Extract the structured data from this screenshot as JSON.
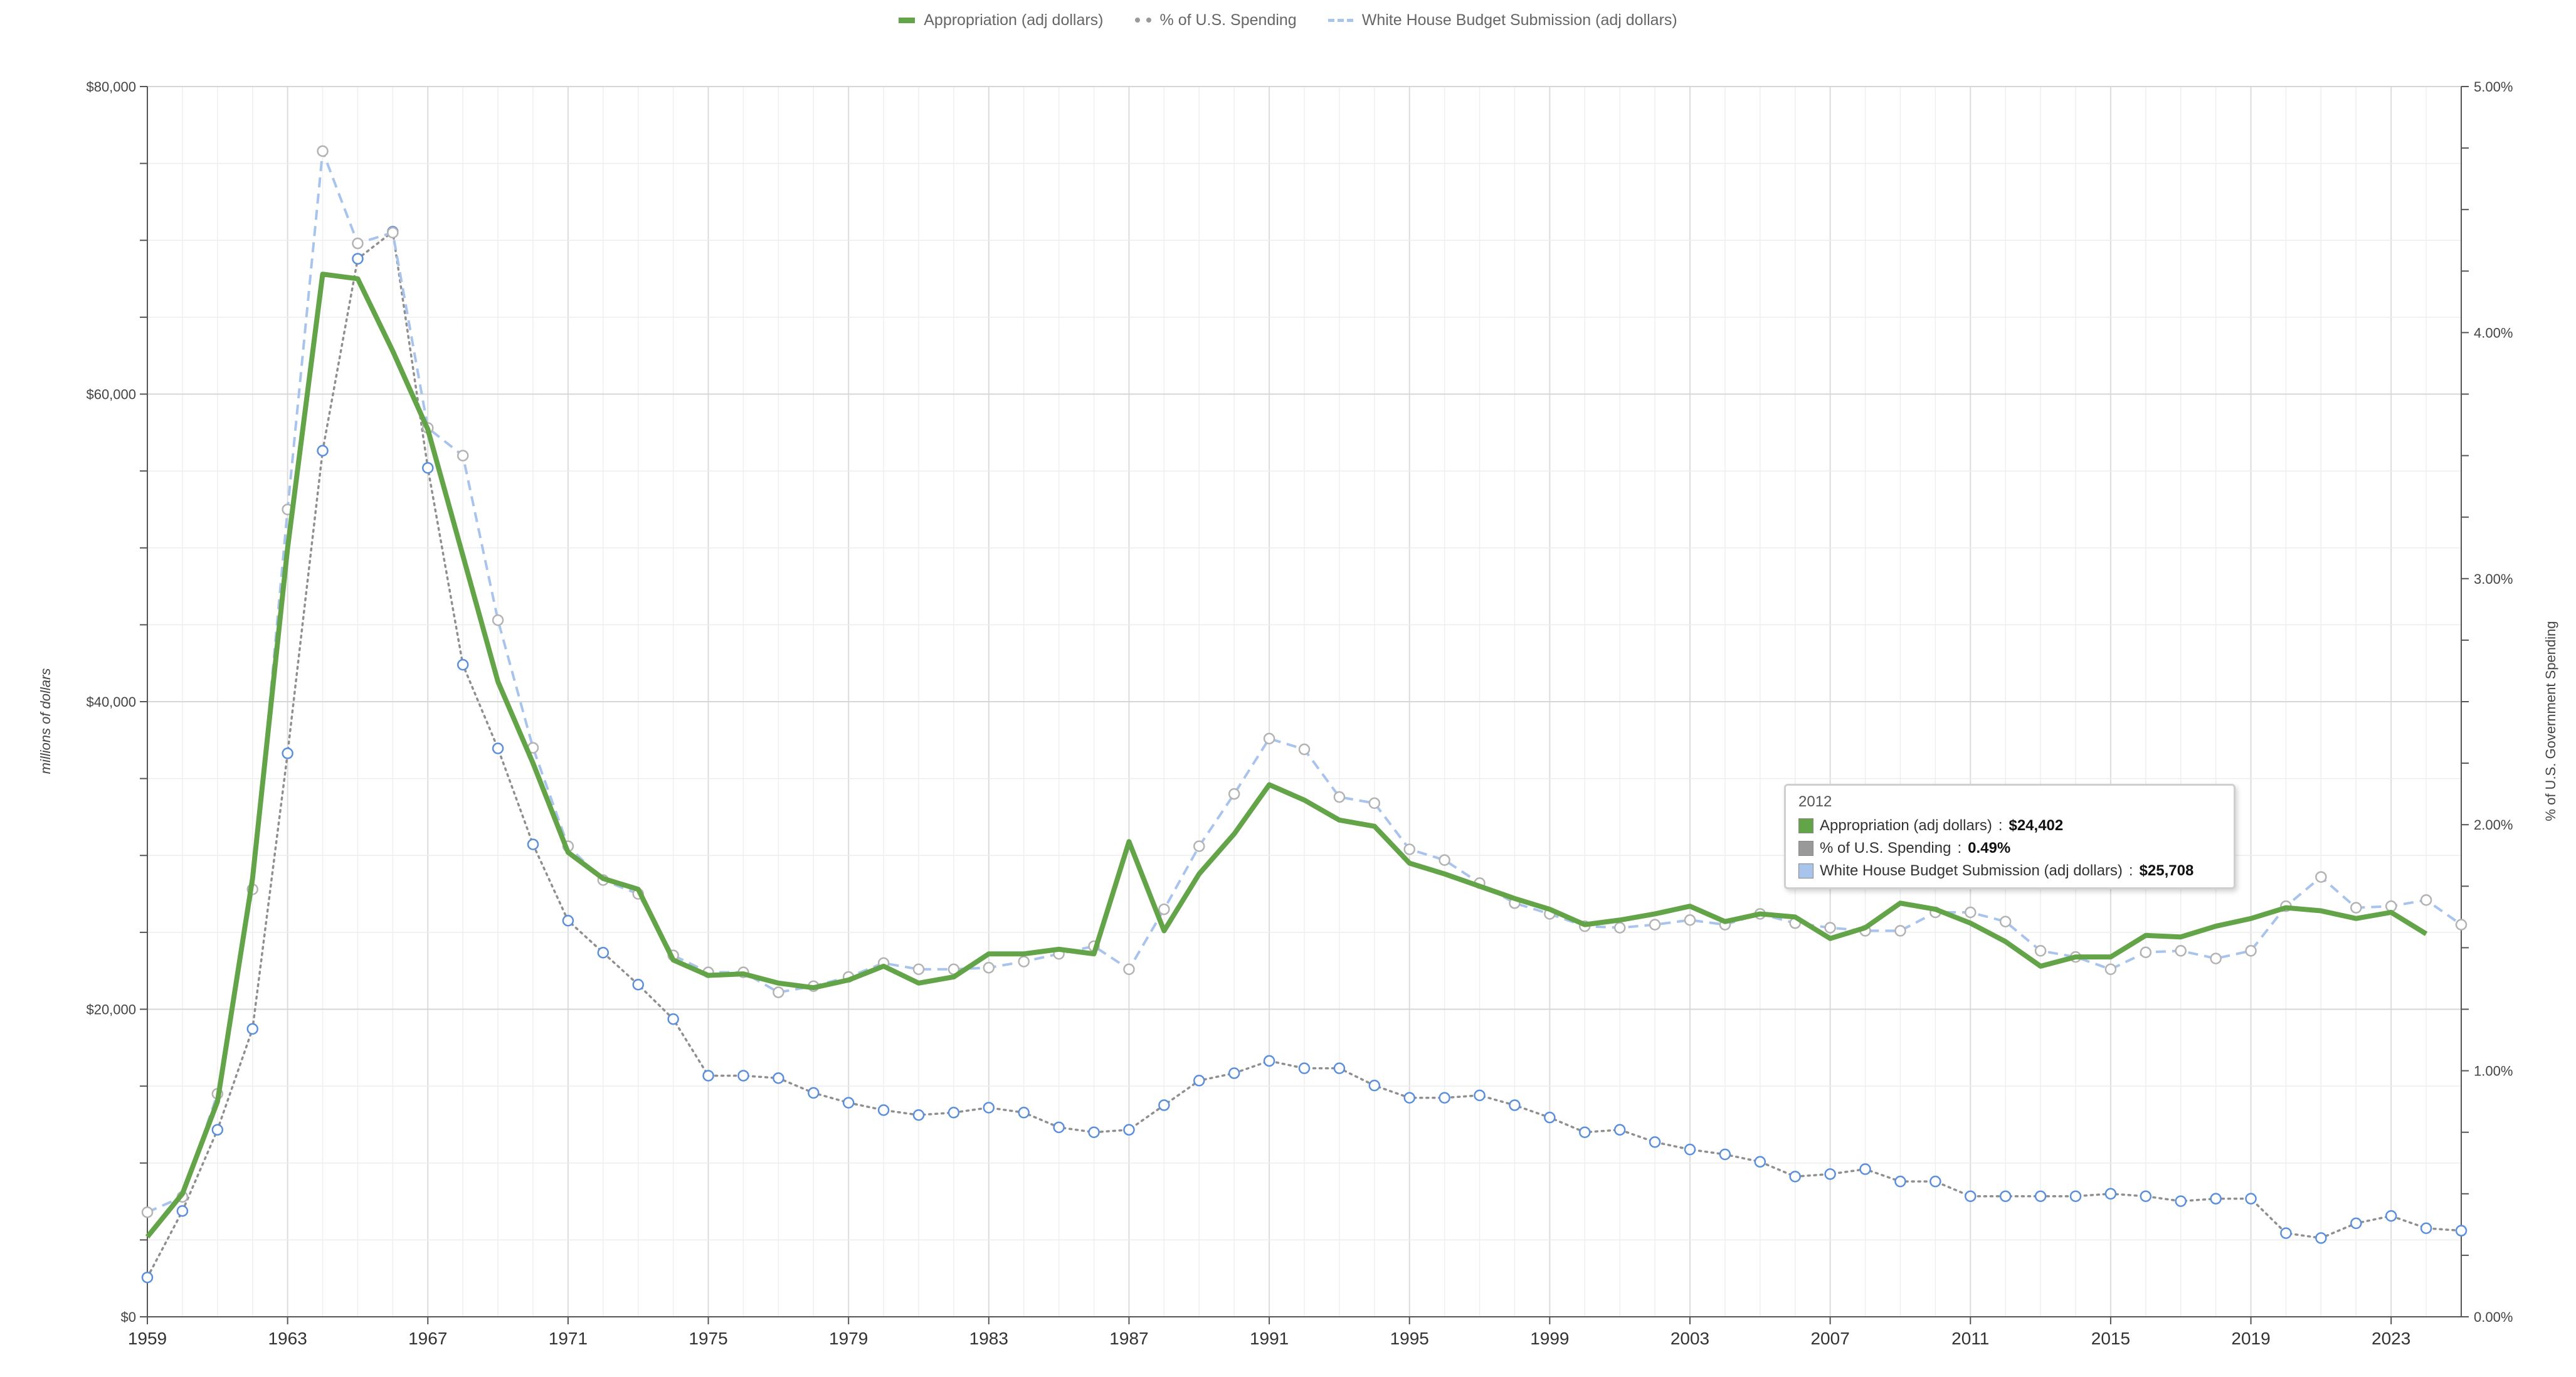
{
  "legend": [
    {
      "label": "Appropriation (adj dollars)",
      "style": "solid",
      "color": "#62a447"
    },
    {
      "label": "% of U.S. Spending",
      "style": "dotted",
      "color": "#999999"
    },
    {
      "label": "White House Budget Submission (adj dollars)",
      "style": "dashed",
      "color": "#a9c4ec"
    }
  ],
  "tooltip": {
    "year": "2012",
    "rows": [
      {
        "label": "Appropriation (adj dollars)",
        "value": "$24,402",
        "color": "#62a447"
      },
      {
        "label": "% of U.S. Spending",
        "value": "0.49%",
        "color": "#999999"
      },
      {
        "label": "White House Budget Submission (adj dollars)",
        "value": "$25,708",
        "color": "#a9c4ec"
      }
    ]
  },
  "chart_data": {
    "type": "line",
    "title": "",
    "ylabel": "millions of dollars",
    "y2label": "% of U.S. Government Spending",
    "xlim": [
      1959,
      2025
    ],
    "ylim": [
      0,
      80000
    ],
    "y2lim": [
      0,
      5
    ],
    "grid": true,
    "legend_position": "top-center",
    "x_ticks": [
      "1959",
      "1963",
      "1967",
      "1971",
      "1975",
      "1979",
      "1983",
      "1987",
      "1991",
      "1995",
      "1999",
      "2003",
      "2007",
      "2011",
      "2015",
      "2019",
      "2023"
    ],
    "y_ticks": [
      "$0",
      "$20,000",
      "$40,000",
      "$60,000",
      "$80,000"
    ],
    "y2_ticks": [
      "0.00%",
      "1.00%",
      "2.00%",
      "3.00%",
      "4.00%",
      "5.00%"
    ],
    "series": [
      {
        "name": "Appropriation (adj dollars)",
        "axis": "left",
        "color": "#62a447",
        "x": [
          1959,
          1960,
          1961,
          1962,
          1963,
          1964,
          1965,
          1966,
          1967,
          1968,
          1969,
          1970,
          1971,
          1972,
          1973,
          1974,
          1975,
          1976,
          1977,
          1978,
          1979,
          1980,
          1981,
          1982,
          1983,
          1984,
          1985,
          1986,
          1987,
          1988,
          1989,
          1990,
          1991,
          1992,
          1993,
          1994,
          1995,
          1996,
          1997,
          1998,
          1999,
          2000,
          2001,
          2002,
          2003,
          2004,
          2005,
          2006,
          2007,
          2008,
          2009,
          2010,
          2011,
          2012,
          2013,
          2014,
          2015,
          2016,
          2017,
          2018,
          2019,
          2020,
          2021,
          2022,
          2023,
          2024
        ],
        "values": [
          5200,
          8000,
          14000,
          28500,
          50000,
          67800,
          67500,
          62800,
          57700,
          49500,
          41300,
          36000,
          30200,
          28500,
          27800,
          23200,
          22200,
          22300,
          21700,
          21400,
          21900,
          22800,
          21700,
          22100,
          23600,
          23600,
          23900,
          23600,
          30900,
          25100,
          28800,
          31400,
          34600,
          33600,
          32300,
          31900,
          29500,
          28800,
          28000,
          27200,
          26500,
          25500,
          25800,
          26200,
          26700,
          25700,
          26200,
          26000,
          24600,
          25300,
          26900,
          26500,
          25600,
          24400,
          22800,
          23400,
          23400,
          24800,
          24700,
          25400,
          25900,
          26600,
          26400,
          25900,
          26300,
          24900
        ]
      },
      {
        "name": "% of U.S. Spending",
        "axis": "right",
        "color": "#999999",
        "x": [
          1959,
          1960,
          1961,
          1962,
          1963,
          1964,
          1965,
          1966,
          1967,
          1968,
          1969,
          1970,
          1971,
          1972,
          1973,
          1974,
          1975,
          1976,
          1977,
          1978,
          1979,
          1980,
          1981,
          1982,
          1983,
          1984,
          1985,
          1986,
          1987,
          1988,
          1989,
          1990,
          1991,
          1992,
          1993,
          1994,
          1995,
          1996,
          1997,
          1998,
          1999,
          2000,
          2001,
          2002,
          2003,
          2004,
          2005,
          2006,
          2007,
          2008,
          2009,
          2010,
          2011,
          2012,
          2013,
          2014,
          2015,
          2016,
          2017,
          2018,
          2019,
          2020,
          2021,
          2022,
          2023,
          2024,
          2025
        ],
        "values": [
          0.16,
          0.43,
          0.76,
          1.17,
          2.29,
          3.52,
          4.3,
          4.41,
          3.45,
          2.65,
          2.31,
          1.92,
          1.61,
          1.48,
          1.35,
          1.21,
          0.98,
          0.98,
          0.97,
          0.91,
          0.87,
          0.84,
          0.82,
          0.83,
          0.85,
          0.83,
          0.77,
          0.75,
          0.76,
          0.86,
          0.96,
          0.99,
          1.04,
          1.01,
          1.01,
          0.94,
          0.89,
          0.89,
          0.9,
          0.86,
          0.81,
          0.75,
          0.76,
          0.71,
          0.68,
          0.66,
          0.63,
          0.57,
          0.58,
          0.6,
          0.55,
          0.55,
          0.49,
          0.49,
          0.49,
          0.49,
          0.5,
          0.49,
          0.47,
          0.48,
          0.48,
          0.34,
          0.32,
          0.38,
          0.41,
          0.36,
          0.35
        ]
      },
      {
        "name": "White House Budget Submission (adj dollars)",
        "axis": "left",
        "color": "#a9c4ec",
        "x": [
          1959,
          1960,
          1961,
          1962,
          1963,
          1964,
          1965,
          1966,
          1967,
          1968,
          1969,
          1970,
          1971,
          1972,
          1973,
          1974,
          1975,
          1976,
          1977,
          1978,
          1979,
          1980,
          1981,
          1982,
          1983,
          1984,
          1985,
          1986,
          1987,
          1988,
          1989,
          1990,
          1991,
          1992,
          1993,
          1994,
          1995,
          1996,
          1997,
          1998,
          1999,
          2000,
          2001,
          2002,
          2003,
          2004,
          2005,
          2006,
          2007,
          2008,
          2009,
          2010,
          2011,
          2012,
          2013,
          2014,
          2015,
          2016,
          2017,
          2018,
          2019,
          2020,
          2021,
          2022,
          2023,
          2024,
          2025
        ],
        "values": [
          6800,
          7800,
          14500,
          27800,
          52500,
          75800,
          69800,
          70500,
          57800,
          56000,
          45300,
          37000,
          30600,
          28400,
          27500,
          23500,
          22400,
          22400,
          21100,
          21500,
          22100,
          23000,
          22600,
          22600,
          22700,
          23100,
          23600,
          24100,
          22600,
          26500,
          30600,
          34000,
          37600,
          36900,
          33800,
          33400,
          30400,
          29700,
          28200,
          26900,
          26200,
          25400,
          25300,
          25500,
          25800,
          25500,
          26200,
          25600,
          25300,
          25100,
          25100,
          26300,
          26300,
          25700,
          23800,
          23400,
          22600,
          23700,
          23800,
          23300,
          23800,
          26700,
          28600,
          26600,
          26700,
          27100,
          25500
        ]
      }
    ]
  }
}
